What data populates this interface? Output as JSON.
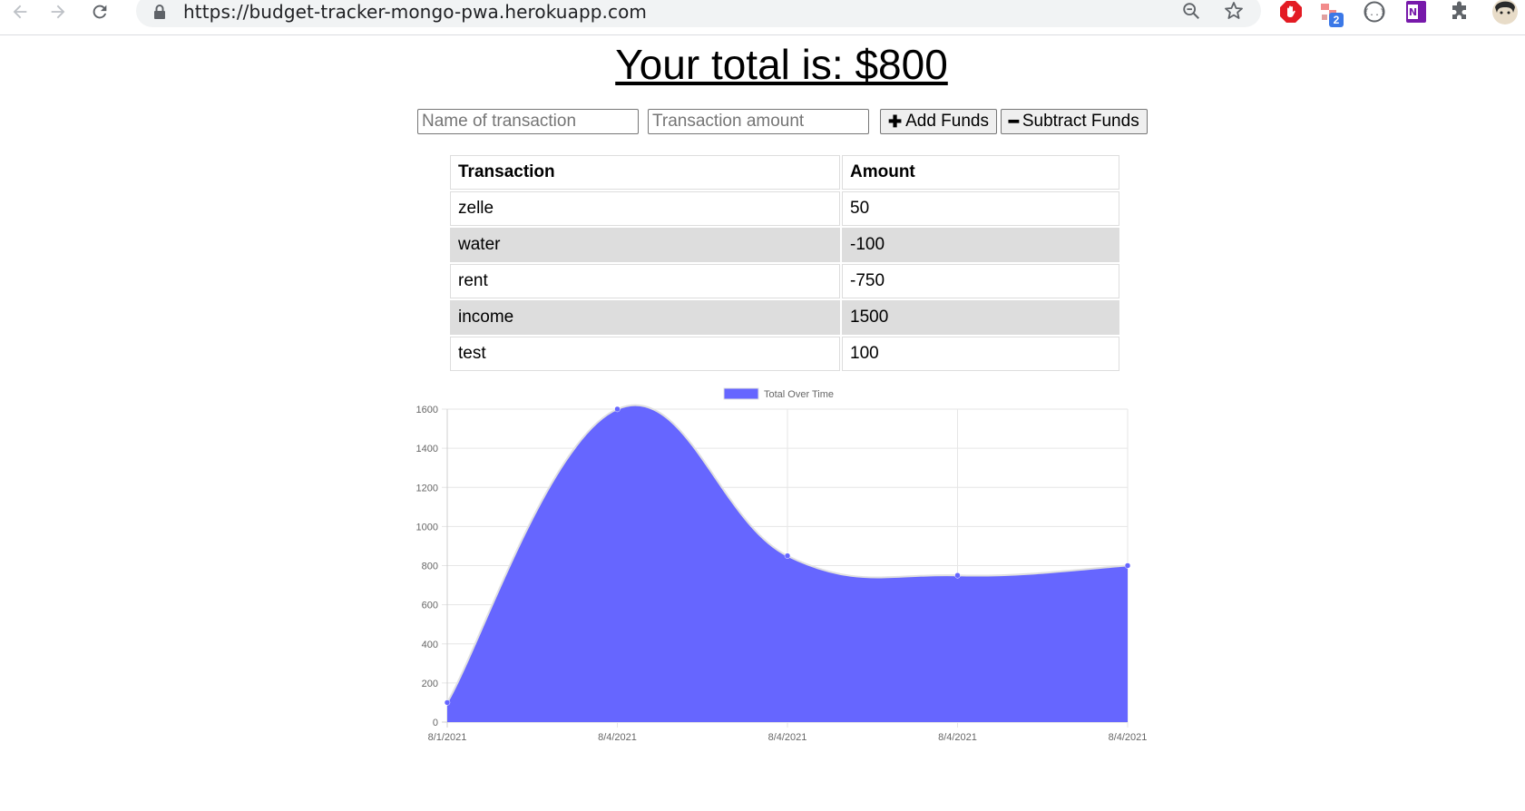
{
  "browser": {
    "url": "https://budget-tracker-mongo-pwa.herokuapp.com",
    "extension_badge": "2",
    "icons": [
      "back-arrow-icon",
      "forward-arrow-icon",
      "reload-icon",
      "lock-icon",
      "zoom-icon",
      "star-icon",
      "adblock-icon",
      "extension-icon",
      "json-viewer-icon",
      "onenote-icon",
      "puzzle-icon",
      "avatar"
    ]
  },
  "page": {
    "total_title": "Your total is: $800",
    "name_placeholder": "Name of transaction",
    "amount_placeholder": "Transaction amount",
    "add_label": "Add Funds",
    "subtract_label": "Subtract Funds"
  },
  "table": {
    "headers": [
      "Transaction",
      "Amount"
    ],
    "rows": [
      {
        "name": "zelle",
        "amount": "50"
      },
      {
        "name": "water",
        "amount": "-100"
      },
      {
        "name": "rent",
        "amount": "-750"
      },
      {
        "name": "income",
        "amount": "1500"
      },
      {
        "name": "test",
        "amount": "100"
      }
    ]
  },
  "chart_data": {
    "type": "area",
    "x": [
      "8/1/2021",
      "8/4/2021",
      "8/4/2021",
      "8/4/2021",
      "8/4/2021"
    ],
    "series": [
      {
        "name": "Total Over Time",
        "values": [
          100,
          1600,
          850,
          750,
          800
        ],
        "color": "#6666ff"
      }
    ],
    "ylim": [
      0,
      1600
    ],
    "yticks": [
      0,
      200,
      400,
      600,
      800,
      1000,
      1200,
      1400,
      1600
    ],
    "grid": true,
    "legend": "top-center"
  }
}
